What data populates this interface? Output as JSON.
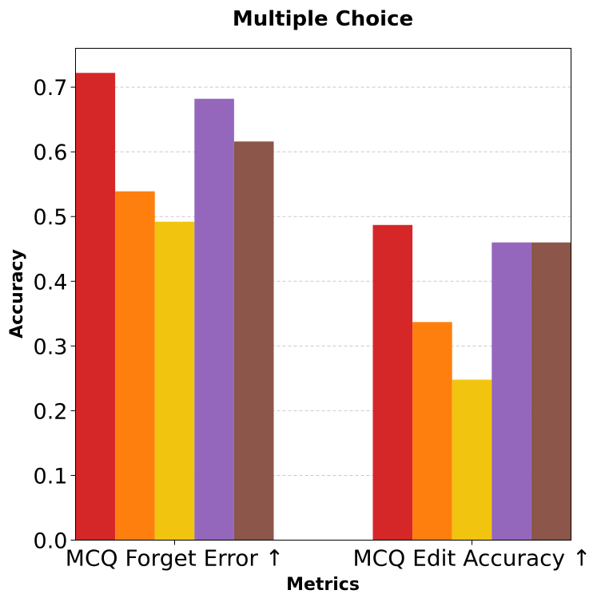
{
  "chart_data": {
    "type": "bar",
    "title": "Multiple Choice",
    "xlabel": "Metrics",
    "ylabel": "Accuracy",
    "categories": [
      "MCQ Forget Error ↑",
      "MCQ Edit Accuracy ↑"
    ],
    "series": [
      {
        "color": "#d62728",
        "values": [
          0.722,
          0.487
        ]
      },
      {
        "color": "#ff7f0e",
        "values": [
          0.539,
          0.337
        ]
      },
      {
        "color": "#f1c40f",
        "values": [
          0.492,
          0.248
        ]
      },
      {
        "color": "#9467bd",
        "values": [
          0.682,
          0.46
        ]
      },
      {
        "color": "#8c564b",
        "values": [
          0.616,
          0.46
        ]
      }
    ],
    "ylim": [
      0,
      0.76
    ],
    "yticks": [
      0.0,
      0.1,
      0.2,
      0.3,
      0.4,
      0.5,
      0.6,
      0.7
    ],
    "ytick_labels": [
      "0.0",
      "0.1",
      "0.2",
      "0.3",
      "0.4",
      "0.5",
      "0.6",
      "0.7"
    ],
    "grid": "horizontal-dashed",
    "legend": "none"
  }
}
